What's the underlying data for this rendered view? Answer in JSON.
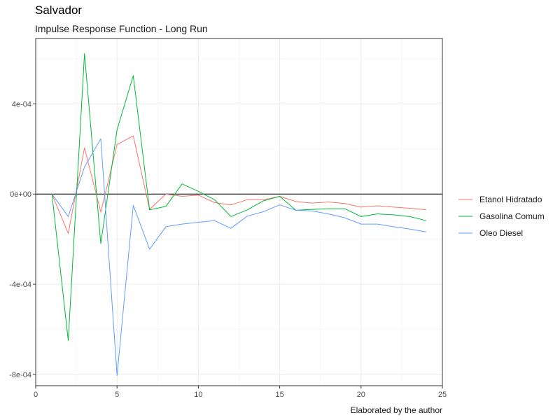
{
  "chart_data": {
    "type": "line",
    "title": "Salvador",
    "subtitle": "Impulse Response Function - Long Run",
    "caption": "Elaborated by the author",
    "xlabel": "",
    "ylabel": "",
    "xlim": [
      0,
      25
    ],
    "ylim": [
      -0.00085,
      0.00069
    ],
    "x_ticks": [
      0,
      5,
      10,
      15,
      20,
      25
    ],
    "x_tick_labels": [
      "0",
      "5",
      "10",
      "15",
      "20",
      "25"
    ],
    "y_ticks": [
      -0.0008,
      -0.0004,
      0,
      0.0004
    ],
    "y_tick_labels": [
      "-8e-04",
      "-4e-04",
      "0e+00",
      "4e-04"
    ],
    "hline": 0,
    "grid": true,
    "legend_position": "right",
    "x": [
      1,
      2,
      3,
      4,
      5,
      6,
      7,
      8,
      9,
      10,
      11,
      12,
      13,
      14,
      15,
      16,
      17,
      18,
      19,
      20,
      21,
      22,
      23,
      24
    ],
    "series": [
      {
        "name": "Etanol Hidratado",
        "color": "#F8766D",
        "values": [
          0,
          -0.000175,
          0.000205,
          -8e-05,
          0.00022,
          0.000258,
          -6.8e-05,
          0.0,
          -1e-05,
          -5e-06,
          -3.8e-05,
          -4.8e-05,
          -2.5e-05,
          -2.5e-05,
          -1e-05,
          -3.3e-05,
          -4e-05,
          -3.5e-05,
          -4.2e-05,
          -5.8e-05,
          -5.2e-05,
          -5.8e-05,
          -6.3e-05,
          -7e-05
        ]
      },
      {
        "name": "Gasolina Comum",
        "color": "#00BA38",
        "values": [
          0,
          -0.00065,
          0.000623,
          -0.00022,
          0.000285,
          0.000525,
          -7e-05,
          -5.5e-05,
          4.5e-05,
          1.2e-05,
          -2.5e-05,
          -0.0001,
          -7e-05,
          -3e-05,
          -1e-05,
          -7.2e-05,
          -6.8e-05,
          -6.5e-05,
          -6.5e-05,
          -0.0001,
          -8.8e-05,
          -9.2e-05,
          -0.0001,
          -0.000118
        ]
      },
      {
        "name": "Oleo Diesel",
        "color": "#619CFF",
        "values": [
          0,
          -0.0001,
          0.00012,
          0.000245,
          -0.000805,
          -5e-05,
          -0.000245,
          -0.000145,
          -0.000133,
          -0.000125,
          -0.000118,
          -0.000152,
          -9.8e-05,
          -7.8e-05,
          -4.8e-05,
          -7.2e-05,
          -7.5e-05,
          -8.8e-05,
          -0.000105,
          -0.000133,
          -0.000133,
          -0.000145,
          -0.000155,
          -0.000168
        ]
      }
    ]
  }
}
